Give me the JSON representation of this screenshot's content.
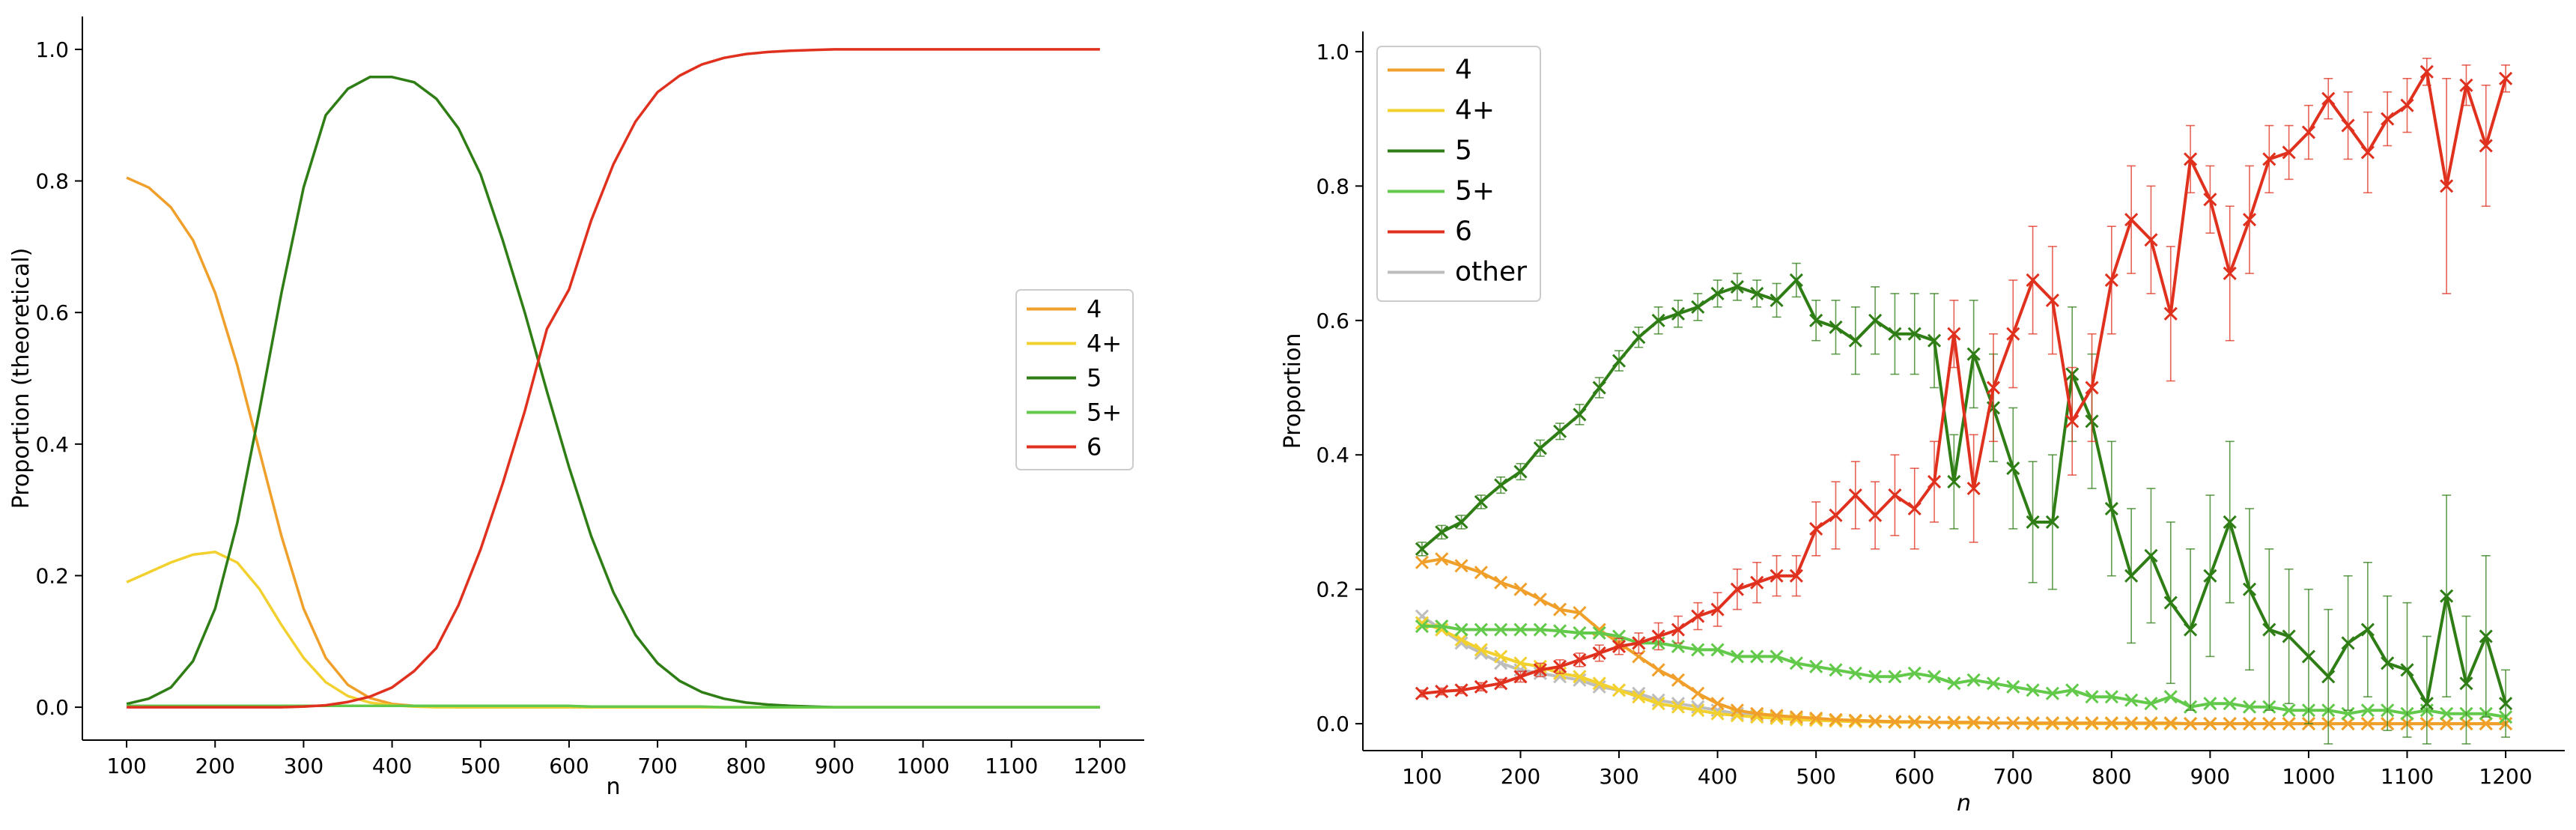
{
  "figure": {
    "panel_count": 2
  },
  "colors": {
    "4": "#f0a02a",
    "4+": "#f2d02e",
    "5": "#2e7d15",
    "5+": "#62c94a",
    "6": "#e0301e",
    "other": "#bdbdbd"
  },
  "chart_data": [
    {
      "type": "line",
      "title": "",
      "xlabel": "n",
      "ylabel": "Proportion (theoretical)",
      "xlim": [
        50,
        1250
      ],
      "ylim": [
        -0.05,
        1.05
      ],
      "xticks": [
        100,
        200,
        300,
        400,
        500,
        600,
        700,
        800,
        900,
        1000,
        1100,
        1200
      ],
      "yticks": [
        0.0,
        0.2,
        0.4,
        0.6,
        0.8,
        1.0
      ],
      "grid": false,
      "legend_position": "center-right",
      "legend": [
        "4",
        "4+",
        "5",
        "5+",
        "6"
      ],
      "x": [
        100,
        125,
        150,
        175,
        200,
        225,
        250,
        275,
        300,
        325,
        350,
        375,
        400,
        425,
        450,
        475,
        500,
        525,
        550,
        575,
        600,
        625,
        650,
        675,
        700,
        725,
        750,
        775,
        800,
        825,
        850,
        875,
        900,
        925,
        950,
        975,
        1000,
        1025,
        1050,
        1075,
        1100,
        1125,
        1150,
        1175,
        1200
      ],
      "series": [
        {
          "name": "4",
          "values": [
            0.805,
            0.79,
            0.76,
            0.71,
            0.63,
            0.52,
            0.39,
            0.26,
            0.15,
            0.075,
            0.034,
            0.014,
            0.005,
            0.002,
            0.001,
            0,
            0,
            0,
            0,
            0,
            0,
            0,
            0,
            0,
            0,
            0,
            0,
            0,
            0,
            0,
            0,
            0,
            0,
            0,
            0,
            0,
            0,
            0,
            0,
            0,
            0,
            0,
            0,
            0,
            0
          ]
        },
        {
          "name": "4+",
          "values": [
            0.19,
            0.205,
            0.22,
            0.232,
            0.236,
            0.22,
            0.18,
            0.125,
            0.075,
            0.038,
            0.017,
            0.007,
            0.003,
            0.001,
            0,
            0,
            0,
            0,
            0,
            0,
            0,
            0,
            0,
            0,
            0,
            0,
            0,
            0,
            0,
            0,
            0,
            0,
            0,
            0,
            0,
            0,
            0,
            0,
            0,
            0,
            0,
            0,
            0,
            0,
            0
          ]
        },
        {
          "name": "5",
          "values": [
            0.005,
            0.013,
            0.03,
            0.07,
            0.15,
            0.28,
            0.45,
            0.63,
            0.79,
            0.9,
            0.94,
            0.958,
            0.958,
            0.95,
            0.925,
            0.88,
            0.81,
            0.71,
            0.6,
            0.48,
            0.365,
            0.26,
            0.175,
            0.11,
            0.067,
            0.04,
            0.023,
            0.013,
            0.007,
            0.004,
            0.002,
            0.001,
            0,
            0,
            0,
            0,
            0,
            0,
            0,
            0,
            0,
            0,
            0,
            0,
            0
          ]
        },
        {
          "name": "5+",
          "values": [
            0.002,
            0.002,
            0.002,
            0.002,
            0.002,
            0.002,
            0.002,
            0.002,
            0.002,
            0.002,
            0.002,
            0.002,
            0.002,
            0.002,
            0.002,
            0.002,
            0.002,
            0.002,
            0.002,
            0.002,
            0.002,
            0.001,
            0.001,
            0.001,
            0.001,
            0.001,
            0.001,
            0,
            0,
            0,
            0,
            0,
            0,
            0,
            0,
            0,
            0,
            0,
            0,
            0,
            0,
            0,
            0,
            0,
            0
          ]
        },
        {
          "name": "6",
          "values": [
            0,
            0,
            0,
            0,
            0,
            0,
            0,
            0,
            0.001,
            0.003,
            0.008,
            0.016,
            0.03,
            0.055,
            0.09,
            0.155,
            0.24,
            0.34,
            0.45,
            0.575,
            0.635,
            0.74,
            0.825,
            0.89,
            0.935,
            0.96,
            0.977,
            0.987,
            0.993,
            0.996,
            0.998,
            0.999,
            1,
            1,
            1,
            1,
            1,
            1,
            1,
            1,
            1,
            1,
            1,
            1,
            1
          ]
        }
      ]
    },
    {
      "type": "line",
      "title": "",
      "xlabel": "n",
      "ylabel": "Proportion",
      "xlim": [
        40,
        1260
      ],
      "ylim": [
        -0.04,
        1.03
      ],
      "xticks": [
        100,
        200,
        300,
        400,
        500,
        600,
        700,
        800,
        900,
        1000,
        1100,
        1200
      ],
      "yticks": [
        0.0,
        0.2,
        0.4,
        0.6,
        0.8,
        1.0
      ],
      "grid": false,
      "legend_position": "top-left",
      "legend": [
        "4",
        "4+",
        "5",
        "5+",
        "6",
        "other"
      ],
      "markers": "x",
      "x": [
        100,
        120,
        140,
        160,
        180,
        200,
        220,
        240,
        260,
        280,
        300,
        320,
        340,
        360,
        380,
        400,
        420,
        440,
        460,
        480,
        500,
        520,
        540,
        560,
        580,
        600,
        620,
        640,
        660,
        680,
        700,
        720,
        740,
        760,
        780,
        800,
        820,
        840,
        860,
        880,
        900,
        920,
        940,
        960,
        980,
        1000,
        1020,
        1040,
        1060,
        1080,
        1100,
        1120,
        1140,
        1160,
        1180,
        1200
      ],
      "series": [
        {
          "name": "4",
          "values": [
            0.24,
            0.245,
            0.235,
            0.225,
            0.21,
            0.2,
            0.185,
            0.17,
            0.165,
            0.14,
            0.12,
            0.1,
            0.08,
            0.065,
            0.045,
            0.03,
            0.02,
            0.015,
            0.012,
            0.01,
            0.008,
            0.006,
            0.005,
            0.004,
            0.003,
            0.003,
            0.002,
            0.002,
            0.002,
            0.001,
            0.001,
            0.001,
            0.001,
            0.001,
            0.001,
            0.001,
            0.001,
            0.001,
            0.001,
            0,
            0,
            0,
            0,
            0,
            0,
            0,
            0,
            0,
            0,
            0,
            0,
            0,
            0,
            0,
            0,
            0
          ]
        },
        {
          "name": "4+",
          "values": [
            0.15,
            0.14,
            0.125,
            0.11,
            0.1,
            0.09,
            0.085,
            0.075,
            0.07,
            0.06,
            0.05,
            0.04,
            0.03,
            0.025,
            0.02,
            0.015,
            0.012,
            0.01,
            0.008,
            0.006,
            0.005,
            0.004,
            0.003,
            0.003,
            0.002,
            0.002,
            0.002,
            0.001,
            0.001,
            0.001,
            0.001,
            0,
            0,
            0,
            0,
            0,
            0,
            0,
            0,
            0,
            0,
            0,
            0,
            0,
            0,
            0,
            0,
            0,
            0,
            0,
            0,
            0,
            0,
            0,
            0,
            0
          ]
        },
        {
          "name": "5",
          "values": [
            0.26,
            0.285,
            0.3,
            0.33,
            0.355,
            0.375,
            0.41,
            0.435,
            0.46,
            0.5,
            0.54,
            0.575,
            0.6,
            0.61,
            0.62,
            0.64,
            0.65,
            0.64,
            0.63,
            0.66,
            0.6,
            0.59,
            0.57,
            0.6,
            0.58,
            0.58,
            0.57,
            0.36,
            0.55,
            0.47,
            0.38,
            0.3,
            0.3,
            0.52,
            0.45,
            0.32,
            0.22,
            0.25,
            0.18,
            0.14,
            0.22,
            0.3,
            0.2,
            0.14,
            0.13,
            0.1,
            0.07,
            0.12,
            0.14,
            0.09,
            0.08,
            0.03,
            0.19,
            0.06,
            0.13,
            0.03
          ]
        },
        {
          "name": "5+",
          "values": [
            0.145,
            0.145,
            0.14,
            0.14,
            0.14,
            0.14,
            0.14,
            0.138,
            0.135,
            0.135,
            0.13,
            0.12,
            0.12,
            0.115,
            0.11,
            0.11,
            0.1,
            0.1,
            0.1,
            0.09,
            0.085,
            0.08,
            0.075,
            0.07,
            0.07,
            0.075,
            0.07,
            0.06,
            0.065,
            0.06,
            0.055,
            0.05,
            0.045,
            0.05,
            0.04,
            0.04,
            0.035,
            0.03,
            0.04,
            0.025,
            0.03,
            0.03,
            0.025,
            0.025,
            0.02,
            0.02,
            0.02,
            0.015,
            0.02,
            0.02,
            0.015,
            0.02,
            0.015,
            0.015,
            0.015,
            0.01
          ]
        },
        {
          "name": "6",
          "values": [
            0.045,
            0.048,
            0.05,
            0.055,
            0.06,
            0.07,
            0.08,
            0.085,
            0.095,
            0.105,
            0.115,
            0.12,
            0.13,
            0.14,
            0.16,
            0.17,
            0.2,
            0.21,
            0.22,
            0.22,
            0.29,
            0.31,
            0.34,
            0.31,
            0.34,
            0.32,
            0.36,
            0.58,
            0.35,
            0.5,
            0.58,
            0.66,
            0.63,
            0.45,
            0.5,
            0.66,
            0.75,
            0.72,
            0.61,
            0.84,
            0.78,
            0.67,
            0.75,
            0.84,
            0.85,
            0.88,
            0.93,
            0.89,
            0.85,
            0.9,
            0.92,
            0.97,
            0.8,
            0.95,
            0.86,
            0.96
          ]
        },
        {
          "name": "other",
          "values": [
            0.16,
            0.14,
            0.12,
            0.105,
            0.09,
            0.08,
            0.075,
            0.07,
            0.065,
            0.055,
            0.05,
            0.045,
            0.035,
            0.03,
            0.025,
            0.02,
            0.015,
            0.012,
            0.01,
            0.008,
            0.006,
            0.005,
            0.004,
            0.003,
            0.003,
            0.002,
            0.002,
            0.002,
            0.002,
            0.001,
            0.001,
            0.001,
            0.001,
            0.001,
            0.001,
            0,
            0,
            0,
            0,
            0,
            0,
            0,
            0,
            0,
            0,
            0,
            0,
            0,
            0,
            0,
            0,
            0,
            0,
            0,
            0,
            0
          ]
        }
      ],
      "errors": {
        "5": [
          0.01,
          0.01,
          0.01,
          0.01,
          0.012,
          0.012,
          0.012,
          0.012,
          0.015,
          0.015,
          0.015,
          0.015,
          0.02,
          0.02,
          0.02,
          0.02,
          0.02,
          0.02,
          0.025,
          0.025,
          0.03,
          0.04,
          0.05,
          0.05,
          0.06,
          0.06,
          0.07,
          0.07,
          0.08,
          0.08,
          0.09,
          0.09,
          0.1,
          0.1,
          0.1,
          0.1,
          0.1,
          0.1,
          0.12,
          0.12,
          0.12,
          0.12,
          0.12,
          0.12,
          0.1,
          0.1,
          0.1,
          0.1,
          0.1,
          0.1,
          0.1,
          0.1,
          0.15,
          0.1,
          0.12,
          0.05
        ],
        "6": [
          0.005,
          0.005,
          0.005,
          0.006,
          0.006,
          0.008,
          0.01,
          0.01,
          0.01,
          0.012,
          0.012,
          0.015,
          0.02,
          0.02,
          0.02,
          0.025,
          0.03,
          0.03,
          0.03,
          0.03,
          0.04,
          0.05,
          0.05,
          0.05,
          0.06,
          0.06,
          0.06,
          0.05,
          0.08,
          0.08,
          0.08,
          0.08,
          0.08,
          0.08,
          0.08,
          0.08,
          0.08,
          0.08,
          0.1,
          0.05,
          0.05,
          0.1,
          0.08,
          0.05,
          0.04,
          0.04,
          0.03,
          0.05,
          0.06,
          0.04,
          0.04,
          0.02,
          0.16,
          0.03,
          0.09,
          0.02
        ]
      }
    }
  ]
}
